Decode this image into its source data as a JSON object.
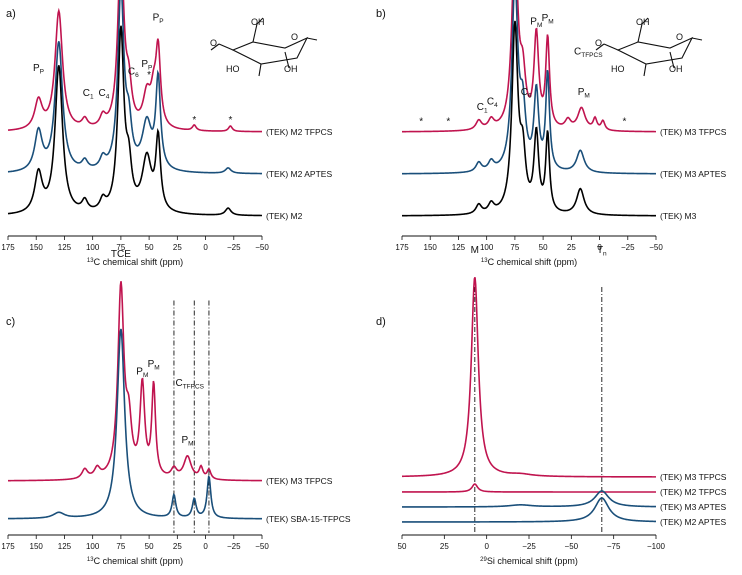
{
  "colors": {
    "magenta": "#c0144f",
    "blue": "#1a4f7a",
    "black": "#000000"
  },
  "chart_data": [
    {
      "panel": "a)",
      "type": "line",
      "title": "",
      "xlabel_prefix": "13",
      "xlabel": "C chemical shift (ppm)",
      "xlim": [
        175,
        -50
      ],
      "xticks": [
        175,
        150,
        125,
        100,
        75,
        50,
        25,
        0,
        -25,
        -50
      ],
      "xtick_labels": [
        "175",
        "150",
        "125",
        "100",
        "75",
        "50",
        "25",
        "0",
        "−25",
        "−50"
      ],
      "series": [
        {
          "name": "(TEK) M2 TFPCS",
          "color": "magenta",
          "offset": 2,
          "amp": 1.0,
          "peaks": [
            [
              148,
              0.16,
              4
            ],
            [
              130,
              0.66,
              4
            ],
            [
              107,
              0.05,
              3
            ],
            [
              91,
              0.06,
              3
            ],
            [
              75,
              1.0,
              3.2
            ],
            [
              68,
              0.2,
              3
            ],
            [
              52,
              0.18,
              4
            ],
            [
              46,
              0.16,
              3
            ],
            [
              42,
              0.42,
              2.5
            ],
            [
              10,
              0.03,
              2
            ],
            [
              -22,
              0.03,
              2
            ]
          ]
        },
        {
          "name": "(TEK) M2 APTES",
          "color": "blue",
          "offset": 1,
          "amp": 1.0,
          "peaks": [
            [
              148,
              0.22,
              4
            ],
            [
              130,
              0.72,
              4
            ],
            [
              107,
              0.05,
              3
            ],
            [
              91,
              0.06,
              3
            ],
            [
              75,
              1.0,
              3.2
            ],
            [
              68,
              0.22,
              3
            ],
            [
              52,
              0.26,
              5
            ],
            [
              42,
              0.5,
              2.5
            ],
            [
              -20,
              0.03,
              3
            ]
          ]
        },
        {
          "name": "(TEK) M2",
          "color": "black",
          "offset": 0,
          "amp": 1.0,
          "peaks": [
            [
              148,
              0.22,
              4
            ],
            [
              130,
              0.82,
              4
            ],
            [
              107,
              0.06,
              3
            ],
            [
              91,
              0.06,
              3
            ],
            [
              75,
              1.0,
              3.2
            ],
            [
              68,
              0.22,
              3
            ],
            [
              52,
              0.3,
              5
            ],
            [
              42,
              0.4,
              2.5
            ],
            [
              -20,
              0.04,
              3
            ]
          ]
        }
      ],
      "annotations": [
        {
          "text": "P",
          "sub": "P",
          "x": 148,
          "series": 0,
          "h": 0.34
        },
        {
          "text": "P",
          "sub": "P",
          "x": 130,
          "series": 0,
          "h": 0.84
        },
        {
          "text": "C",
          "sub": "2,3,5",
          "x": 88,
          "series": 0,
          "h": 1.02
        },
        {
          "text": "TCE",
          "sub": "",
          "x": 75,
          "series": 0,
          "h": 1.28
        },
        {
          "text": "C",
          "sub": "1",
          "x": 104,
          "series": 0,
          "h": 0.2
        },
        {
          "text": "C",
          "sub": "4",
          "x": 90,
          "series": 0,
          "h": 0.2
        },
        {
          "text": "C",
          "sub": "6",
          "x": 64,
          "series": 0,
          "h": 0.32
        },
        {
          "text": "P",
          "sub": "P",
          "x": 52,
          "series": 0,
          "h": 0.36
        },
        {
          "text": "P",
          "sub": "P",
          "x": 42,
          "series": 0,
          "h": 0.62
        },
        {
          "text": "*",
          "sub": "",
          "x": 50,
          "series": 0,
          "h": 0.3
        },
        {
          "text": "*",
          "sub": "",
          "x": 10,
          "series": 0,
          "h": 0.05
        },
        {
          "text": "*",
          "sub": "",
          "x": -22,
          "series": 0,
          "h": 0.05
        }
      ],
      "vlines": []
    },
    {
      "panel": "b)",
      "type": "line",
      "title": "",
      "xlabel_prefix": "13",
      "xlabel": "C chemical shift (ppm)",
      "xlim": [
        175,
        -50
      ],
      "xticks": [
        175,
        150,
        125,
        100,
        75,
        50,
        25,
        0,
        -25,
        -50
      ],
      "xtick_labels": [
        "175",
        "150",
        "125",
        "100",
        "75",
        "50",
        "25",
        "0",
        "−25",
        "−50"
      ],
      "series": [
        {
          "name": "(TEK) M3 TFPCS",
          "color": "magenta",
          "offset": 2,
          "amp": 1.0,
          "peaks": [
            [
              107,
              0.05,
              3
            ],
            [
              96,
              0.05,
              3
            ],
            [
              75,
              1.0,
              3.2
            ],
            [
              68,
              0.25,
              3
            ],
            [
              56,
              0.5,
              2.5
            ],
            [
              46,
              0.48,
              2
            ],
            [
              28,
              0.05,
              3
            ],
            [
              16,
              0.12,
              4
            ],
            [
              4,
              0.06,
              2
            ],
            [
              -3,
              0.05,
              2
            ]
          ]
        },
        {
          "name": "(TEK) M3 APTES",
          "color": "blue",
          "offset": 1,
          "amp": 1.0,
          "peaks": [
            [
              107,
              0.05,
              3
            ],
            [
              96,
              0.05,
              3
            ],
            [
              75,
              1.0,
              3.2
            ],
            [
              68,
              0.3,
              3
            ],
            [
              56,
              0.42,
              2.5
            ],
            [
              46,
              0.52,
              2
            ],
            [
              17,
              0.12,
              4
            ]
          ]
        },
        {
          "name": "(TEK) M3",
          "color": "black",
          "offset": 0,
          "amp": 1.0,
          "peaks": [
            [
              107,
              0.05,
              3
            ],
            [
              96,
              0.05,
              3
            ],
            [
              75,
              1.0,
              3.2
            ],
            [
              68,
              0.28,
              3
            ],
            [
              56,
              0.42,
              2.5
            ],
            [
              46,
              0.42,
              2
            ],
            [
              17,
              0.14,
              4
            ]
          ]
        }
      ],
      "annotations": [
        {
          "text": "TCE",
          "sub": "",
          "x": 75,
          "series": 0,
          "h": 1.28
        },
        {
          "text": "C",
          "sub": "2,3,5",
          "x": 88,
          "series": 0,
          "h": 0.85
        },
        {
          "text": "C",
          "sub": "1",
          "x": 104,
          "series": 0,
          "h": 0.12
        },
        {
          "text": "C",
          "sub": "4",
          "x": 95,
          "series": 0,
          "h": 0.15
        },
        {
          "text": "C",
          "sub": "6",
          "x": 65,
          "series": 0,
          "h": 0.2
        },
        {
          "text": "P",
          "sub": "M",
          "x": 56,
          "series": 0,
          "h": 0.58
        },
        {
          "text": "P",
          "sub": "M",
          "x": 46,
          "series": 0,
          "h": 0.6
        },
        {
          "text": "P",
          "sub": "M",
          "x": 14,
          "series": 0,
          "h": 0.2
        },
        {
          "text": "C",
          "sub": "TFPCS",
          "x": 10,
          "series": 0,
          "h": 0.42
        },
        {
          "text": "*",
          "sub": "",
          "x": 158,
          "series": 0,
          "h": 0.04
        },
        {
          "text": "*",
          "sub": "",
          "x": 134,
          "series": 0,
          "h": 0.04
        },
        {
          "text": "*",
          "sub": "",
          "x": -22,
          "series": 0,
          "h": 0.04
        }
      ],
      "vlines": []
    },
    {
      "panel": "c)",
      "type": "line",
      "title": "",
      "xlabel_prefix": "13",
      "xlabel": "C chemical shift (ppm)",
      "xlim": [
        175,
        -50
      ],
      "xticks": [
        175,
        150,
        125,
        100,
        75,
        50,
        25,
        0,
        -25,
        -50
      ],
      "xtick_labels": [
        "175",
        "150",
        "125",
        "100",
        "75",
        "50",
        "25",
        "0",
        "−25",
        "−50"
      ],
      "series": [
        {
          "name": "(TEK) M3 TFPCS",
          "color": "magenta",
          "offset": 1,
          "amp": 1.0,
          "peaks": [
            [
              107,
              0.05,
              3
            ],
            [
              96,
              0.05,
              3
            ],
            [
              75,
              1.0,
              3.2
            ],
            [
              68,
              0.25,
              3
            ],
            [
              56,
              0.48,
              2.5
            ],
            [
              46,
              0.48,
              2
            ],
            [
              28,
              0.05,
              3
            ],
            [
              16,
              0.12,
              4
            ],
            [
              4,
              0.06,
              2
            ],
            [
              -3,
              0.05,
              2
            ]
          ]
        },
        {
          "name": "(TEK) SBA-15-TFPCS",
          "color": "blue",
          "offset": 0,
          "amp": 1.0,
          "peaks": [
            [
              130,
              0.03,
              6
            ],
            [
              75,
              1.0,
              4
            ],
            [
              28,
              0.12,
              2
            ],
            [
              10,
              0.1,
              2
            ],
            [
              -3,
              0.22,
              2
            ]
          ]
        }
      ],
      "annotations": [
        {
          "text": "TCE",
          "sub": "",
          "x": 75,
          "series": 0,
          "h": 1.18
        },
        {
          "text": "P",
          "sub": "M",
          "x": 56,
          "series": 0,
          "h": 0.56
        },
        {
          "text": "P",
          "sub": "M",
          "x": 46,
          "series": 0,
          "h": 0.6
        },
        {
          "text": "P",
          "sub": "M",
          "x": 16,
          "series": 0,
          "h": 0.2
        },
        {
          "text": "C",
          "sub": "TFPCS",
          "x": 14,
          "series": 0,
          "h": 0.5
        }
      ],
      "vlines": [
        28,
        10,
        -3
      ]
    },
    {
      "panel": "d)",
      "type": "line",
      "title": "",
      "xlabel_prefix": "29",
      "xlabel": "Si chemical shift (ppm)",
      "xlim": [
        50,
        -100
      ],
      "xticks": [
        50,
        25,
        0,
        -25,
        -50,
        -75,
        -100
      ],
      "xtick_labels": [
        "50",
        "25",
        "0",
        "−25",
        "−50",
        "−75",
        "−100"
      ],
      "series": [
        {
          "name": "(TEK) M3 TFPCS",
          "color": "magenta",
          "offset": 3,
          "amp": 1.0,
          "peaks": [
            [
              7,
              1.0,
              2.5
            ],
            [
              -20,
              0.01,
              8
            ]
          ]
        },
        {
          "name": "(TEK) M2 TFPCS",
          "color": "magenta",
          "offset": 2,
          "amp": 1.0,
          "peaks": [
            [
              7,
              0.04,
              2
            ]
          ]
        },
        {
          "name": "(TEK) M3 APTES",
          "color": "blue",
          "offset": 1,
          "amp": 1.0,
          "peaks": [
            [
              -68,
              0.08,
              5
            ],
            [
              -20,
              0.01,
              8
            ]
          ]
        },
        {
          "name": "(TEK) M2 APTES",
          "color": "blue",
          "offset": 0,
          "amp": 1.0,
          "peaks": [
            [
              -68,
              0.12,
              5
            ]
          ]
        }
      ],
      "annotations": [
        {
          "text": "M",
          "sub": "",
          "x": 7,
          "series": 0,
          "h": 1.12
        },
        {
          "text": "T",
          "sub": "n",
          "x": -68,
          "series": 0,
          "h": 1.12
        }
      ],
      "vlines": [
        7,
        -68
      ]
    }
  ]
}
